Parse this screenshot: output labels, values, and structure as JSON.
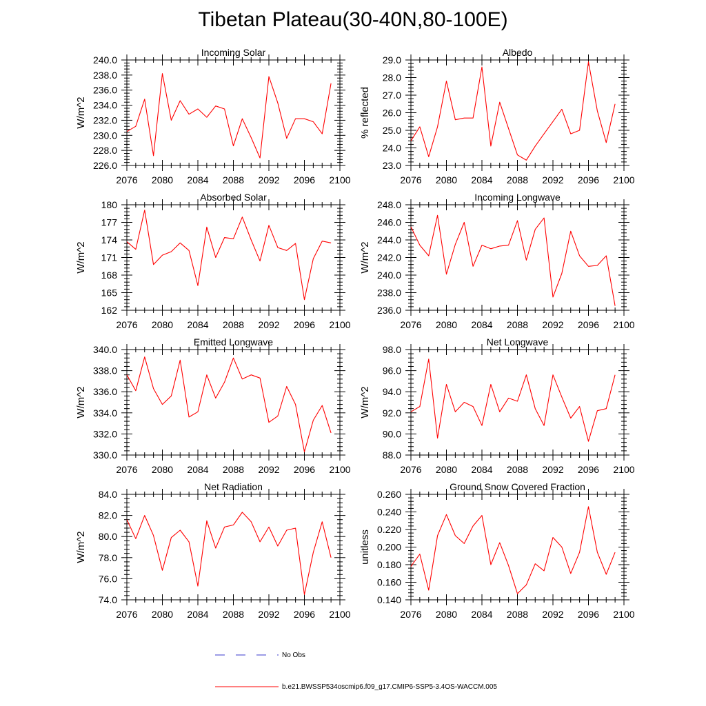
{
  "figure": {
    "title": "Tibetan Plateau(30-40N,80-100E)"
  },
  "legend": {
    "obs_label": "No Obs",
    "obs_color": "#3a3acc",
    "model_label": "b.e21.BWSSP534oscmip6.f09_g17.CMIP6-SSP5-3.4OS-WACCM.005",
    "model_color": "#ff0000"
  },
  "chart_data": [
    {
      "type": "line",
      "title": "Incoming Solar",
      "ylabel": "W/m^2",
      "xlabel": "",
      "xlim": [
        2076,
        2100
      ],
      "ylim": [
        226,
        240
      ],
      "xticks": [
        "2076",
        "2080",
        "2084",
        "2088",
        "2092",
        "2096",
        "2100"
      ],
      "yticks": [
        "226.0",
        "228.0",
        "230.0",
        "232.0",
        "234.0",
        "236.0",
        "238.0",
        "240.0"
      ],
      "x": [
        2076,
        2077,
        2078,
        2079,
        2080,
        2081,
        2082,
        2083,
        2084,
        2085,
        2086,
        2087,
        2088,
        2089,
        2090,
        2091,
        2092,
        2093,
        2094,
        2095,
        2096,
        2097,
        2098,
        2099
      ],
      "series": [
        {
          "name": "b.e21.BWSSP534oscmip6.f09_g17.CMIP6-SSP5-3.4OS-WACCM.005",
          "values": [
            230.5,
            231.2,
            234.8,
            227.3,
            238.2,
            232.0,
            234.6,
            232.8,
            233.5,
            232.4,
            233.9,
            233.5,
            228.6,
            232.2,
            229.7,
            227.0,
            237.8,
            234.3,
            229.6,
            232.2,
            232.2,
            231.8,
            230.2,
            236.9
          ]
        }
      ]
    },
    {
      "type": "line",
      "title": "Albedo",
      "ylabel": "% reflected",
      "xlabel": "",
      "xlim": [
        2076,
        2100
      ],
      "ylim": [
        23,
        29
      ],
      "xticks": [
        "2076",
        "2080",
        "2084",
        "2088",
        "2092",
        "2096",
        "2100"
      ],
      "yticks": [
        "23.0",
        "24.0",
        "25.0",
        "26.0",
        "27.0",
        "28.0",
        "29.0"
      ],
      "x": [
        2076,
        2077,
        2078,
        2079,
        2080,
        2081,
        2082,
        2083,
        2084,
        2085,
        2086,
        2087,
        2088,
        2089,
        2090,
        2091,
        2092,
        2093,
        2094,
        2095,
        2096,
        2097,
        2098,
        2099
      ],
      "series": [
        {
          "name": "b.e21.BWSSP534oscmip6.f09_g17.CMIP6-SSP5-3.4OS-WACCM.005",
          "values": [
            24.4,
            25.2,
            23.5,
            25.2,
            27.8,
            25.6,
            25.7,
            25.7,
            28.6,
            24.1,
            26.6,
            25.1,
            23.6,
            23.3,
            24.1,
            24.8,
            25.5,
            26.2,
            24.8,
            25.0,
            28.9,
            26.1,
            24.3,
            26.5
          ]
        }
      ]
    },
    {
      "type": "line",
      "title": "Absorbed Solar",
      "ylabel": "W/m^2",
      "xlabel": "",
      "xlim": [
        2076,
        2100
      ],
      "ylim": [
        162,
        180
      ],
      "xticks": [
        "2076",
        "2080",
        "2084",
        "2088",
        "2092",
        "2096",
        "2100"
      ],
      "yticks": [
        "162",
        "165",
        "168",
        "171",
        "174",
        "177",
        "180"
      ],
      "x": [
        2076,
        2077,
        2078,
        2079,
        2080,
        2081,
        2082,
        2083,
        2084,
        2085,
        2086,
        2087,
        2088,
        2089,
        2090,
        2091,
        2092,
        2093,
        2094,
        2095,
        2096,
        2097,
        2098,
        2099
      ],
      "series": [
        {
          "name": "b.e21.BWSSP534oscmip6.f09_g17.CMIP6-SSP5-3.4OS-WACCM.005",
          "values": [
            173.7,
            172.4,
            179.1,
            169.8,
            171.4,
            172.0,
            173.5,
            172.2,
            166.2,
            176.2,
            171.0,
            174.4,
            174.2,
            177.9,
            174.0,
            170.4,
            176.5,
            172.7,
            172.2,
            173.4,
            163.8,
            170.8,
            173.8,
            173.5
          ]
        }
      ]
    },
    {
      "type": "line",
      "title": "Incoming Longwave",
      "ylabel": "W/m^2",
      "xlabel": "",
      "xlim": [
        2076,
        2100
      ],
      "ylim": [
        236,
        248
      ],
      "xticks": [
        "2076",
        "2080",
        "2084",
        "2088",
        "2092",
        "2096",
        "2100"
      ],
      "yticks": [
        "236.0",
        "238.0",
        "240.0",
        "242.0",
        "244.0",
        "246.0",
        "248.0"
      ],
      "x": [
        2076,
        2077,
        2078,
        2079,
        2080,
        2081,
        2082,
        2083,
        2084,
        2085,
        2086,
        2087,
        2088,
        2089,
        2090,
        2091,
        2092,
        2093,
        2094,
        2095,
        2096,
        2097,
        2098,
        2099
      ],
      "series": [
        {
          "name": "b.e21.BWSSP534oscmip6.f09_g17.CMIP6-SSP5-3.4OS-WACCM.005",
          "values": [
            245.5,
            243.4,
            242.2,
            246.8,
            240.1,
            243.5,
            246.0,
            241.0,
            243.4,
            243.0,
            243.3,
            243.4,
            246.2,
            241.7,
            245.2,
            246.5,
            237.5,
            240.2,
            245.0,
            242.2,
            241.0,
            241.1,
            242.2,
            236.5
          ]
        }
      ]
    },
    {
      "type": "line",
      "title": "Emitted Longwave",
      "ylabel": "W/m^2",
      "xlabel": "",
      "xlim": [
        2076,
        2100
      ],
      "ylim": [
        330,
        340
      ],
      "xticks": [
        "2076",
        "2080",
        "2084",
        "2088",
        "2092",
        "2096",
        "2100"
      ],
      "yticks": [
        "330.0",
        "332.0",
        "334.0",
        "336.0",
        "338.0",
        "340.0"
      ],
      "x": [
        2076,
        2077,
        2078,
        2079,
        2080,
        2081,
        2082,
        2083,
        2084,
        2085,
        2086,
        2087,
        2088,
        2089,
        2090,
        2091,
        2092,
        2093,
        2094,
        2095,
        2096,
        2097,
        2098,
        2099
      ],
      "series": [
        {
          "name": "b.e21.BWSSP534oscmip6.f09_g17.CMIP6-SSP5-3.4OS-WACCM.005",
          "values": [
            337.6,
            336.1,
            339.3,
            336.3,
            334.8,
            335.6,
            339.0,
            333.6,
            334.1,
            337.6,
            335.4,
            336.9,
            339.2,
            337.2,
            337.6,
            337.3,
            333.1,
            333.7,
            336.5,
            334.8,
            330.3,
            333.3,
            334.7,
            332.1
          ]
        }
      ]
    },
    {
      "type": "line",
      "title": "Net Longwave",
      "ylabel": "W/m^2",
      "xlabel": "",
      "xlim": [
        2076,
        2100
      ],
      "ylim": [
        88,
        98
      ],
      "xticks": [
        "2076",
        "2080",
        "2084",
        "2088",
        "2092",
        "2096",
        "2100"
      ],
      "yticks": [
        "88.0",
        "90.0",
        "92.0",
        "94.0",
        "96.0",
        "98.0"
      ],
      "x": [
        2076,
        2077,
        2078,
        2079,
        2080,
        2081,
        2082,
        2083,
        2084,
        2085,
        2086,
        2087,
        2088,
        2089,
        2090,
        2091,
        2092,
        2093,
        2094,
        2095,
        2096,
        2097,
        2098,
        2099
      ],
      "series": [
        {
          "name": "b.e21.BWSSP534oscmip6.f09_g17.CMIP6-SSP5-3.4OS-WACCM.005",
          "values": [
            92.1,
            92.6,
            97.1,
            89.6,
            94.7,
            92.1,
            93.0,
            92.6,
            90.8,
            94.7,
            92.1,
            93.4,
            93.1,
            95.6,
            92.4,
            90.8,
            95.6,
            93.5,
            91.5,
            92.6,
            89.3,
            92.2,
            92.4,
            95.6
          ]
        }
      ]
    },
    {
      "type": "line",
      "title": "Net Radiation",
      "ylabel": "W/m^2",
      "xlabel": "",
      "xlim": [
        2076,
        2100
      ],
      "ylim": [
        74,
        84
      ],
      "xticks": [
        "2076",
        "2080",
        "2084",
        "2088",
        "2092",
        "2096",
        "2100"
      ],
      "yticks": [
        "74.0",
        "76.0",
        "78.0",
        "80.0",
        "82.0",
        "84.0"
      ],
      "x": [
        2076,
        2077,
        2078,
        2079,
        2080,
        2081,
        2082,
        2083,
        2084,
        2085,
        2086,
        2087,
        2088,
        2089,
        2090,
        2091,
        2092,
        2093,
        2094,
        2095,
        2096,
        2097,
        2098,
        2099
      ],
      "series": [
        {
          "name": "b.e21.BWSSP534oscmip6.f09_g17.CMIP6-SSP5-3.4OS-WACCM.005",
          "values": [
            81.6,
            79.8,
            82.0,
            80.1,
            76.8,
            79.9,
            80.6,
            79.5,
            75.3,
            81.5,
            78.9,
            80.9,
            81.1,
            82.3,
            81.4,
            79.5,
            80.9,
            79.1,
            80.6,
            80.8,
            74.5,
            78.5,
            81.4,
            78.0
          ]
        }
      ]
    },
    {
      "type": "line",
      "title": "Ground Snow Covered Fraction",
      "ylabel": "unitless",
      "xlabel": "",
      "xlim": [
        2076,
        2100
      ],
      "ylim": [
        0.14,
        0.26
      ],
      "xticks": [
        "2076",
        "2080",
        "2084",
        "2088",
        "2092",
        "2096",
        "2100"
      ],
      "yticks": [
        "0.140",
        "0.160",
        "0.180",
        "0.200",
        "0.220",
        "0.240",
        "0.260"
      ],
      "x": [
        2076,
        2077,
        2078,
        2079,
        2080,
        2081,
        2082,
        2083,
        2084,
        2085,
        2086,
        2087,
        2088,
        2089,
        2090,
        2091,
        2092,
        2093,
        2094,
        2095,
        2096,
        2097,
        2098,
        2099
      ],
      "series": [
        {
          "name": "b.e21.BWSSP534oscmip6.f09_g17.CMIP6-SSP5-3.4OS-WACCM.005",
          "values": [
            0.178,
            0.192,
            0.151,
            0.213,
            0.237,
            0.213,
            0.204,
            0.224,
            0.236,
            0.18,
            0.205,
            0.179,
            0.147,
            0.157,
            0.181,
            0.173,
            0.211,
            0.2,
            0.17,
            0.194,
            0.246,
            0.194,
            0.169,
            0.194
          ]
        }
      ]
    }
  ]
}
